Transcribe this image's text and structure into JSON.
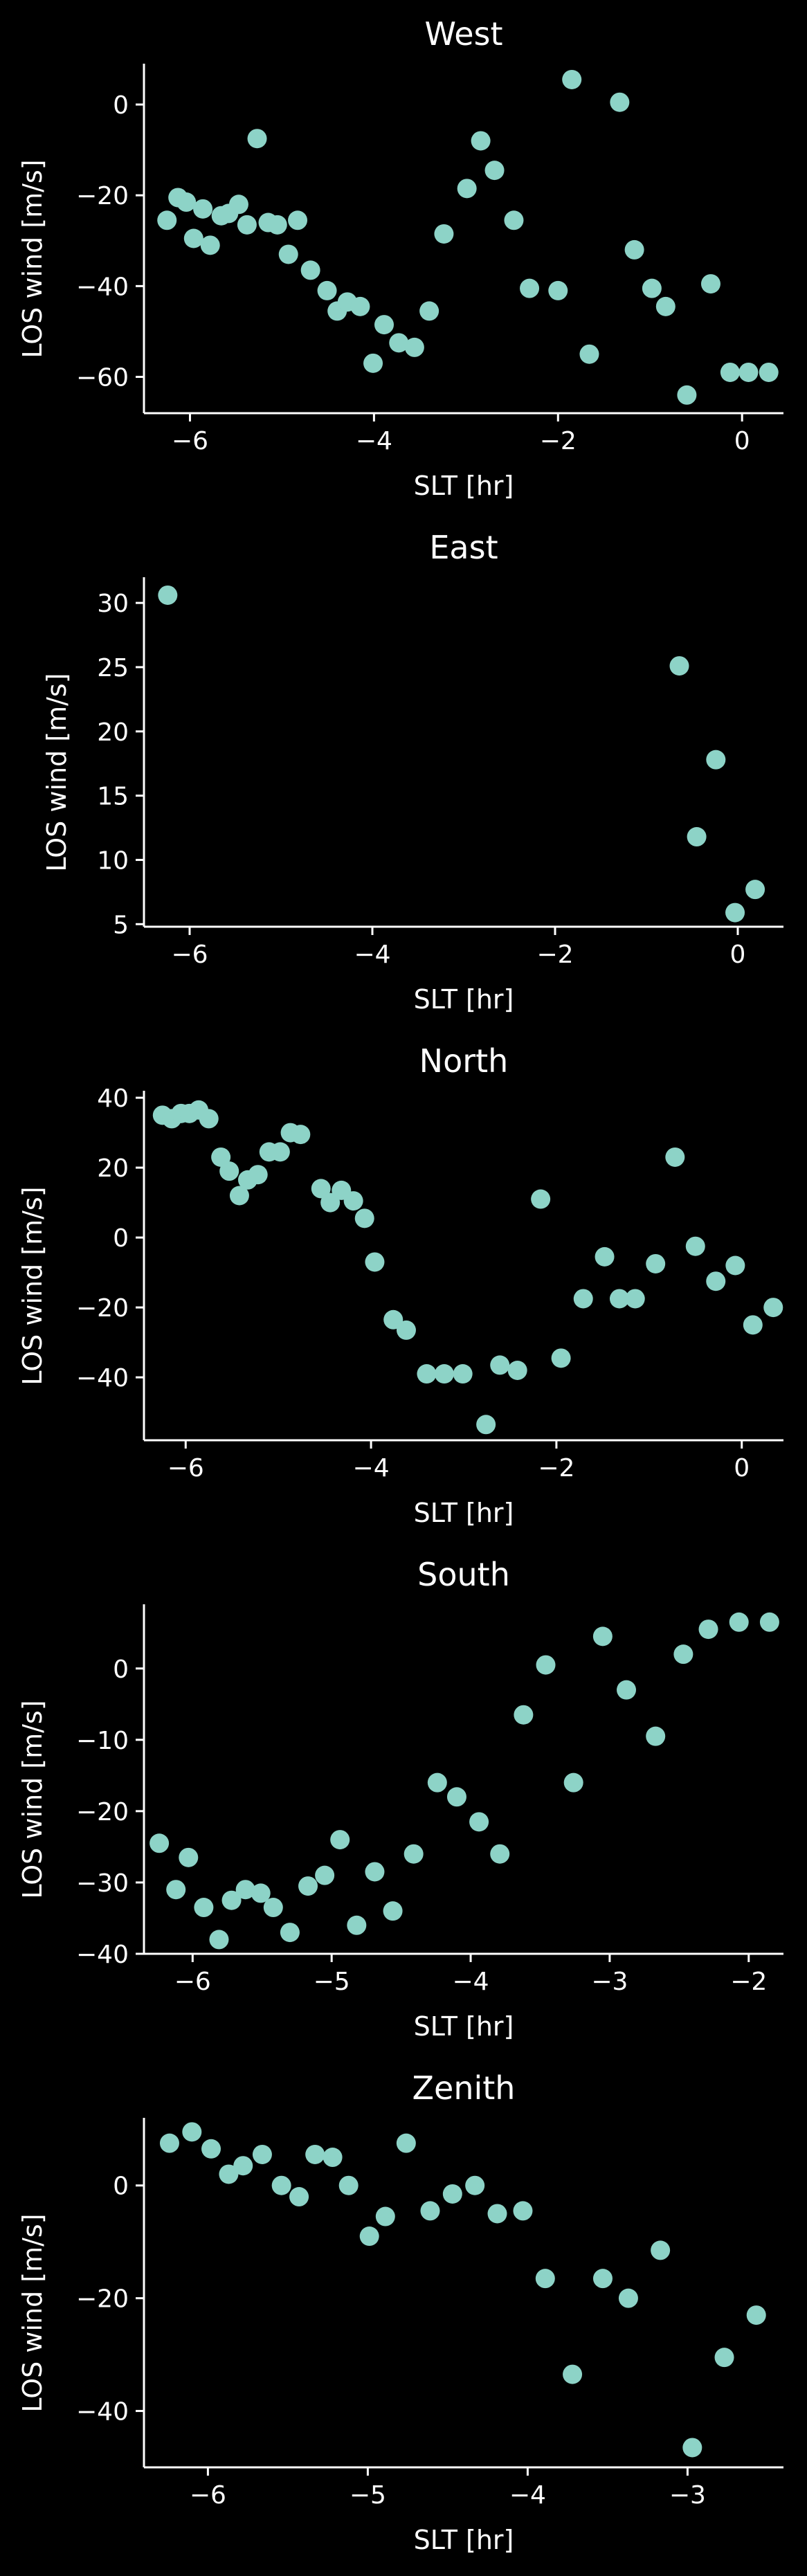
{
  "figure": {
    "background": "#000000",
    "foreground": "#ffffff",
    "marker_color": "#8dd3c7"
  },
  "chart_data": [
    {
      "type": "scatter",
      "title": "West",
      "xlabel": "SLT [hr]",
      "ylabel": "LOS wind [m/s]",
      "xlim": [
        -6.5,
        0.45
      ],
      "ylim": [
        -68,
        9
      ],
      "xticks": [
        -6,
        -4,
        -2,
        0
      ],
      "xtick_labels": [
        "−6",
        "−4",
        "−2",
        "0"
      ],
      "yticks": [
        -60,
        -40,
        -20,
        0
      ],
      "ytick_labels": [
        "−60",
        "−40",
        "−20",
        "0"
      ],
      "grid": false,
      "series": [
        {
          "color": "#8dd3c7",
          "x": [
            -6.25,
            -6.13,
            -6.04,
            -5.96,
            -5.86,
            -5.78,
            -5.66,
            -5.58,
            -5.47,
            -5.38,
            -5.27,
            -5.15,
            -5.05,
            -4.93,
            -4.83,
            -4.69,
            -4.51,
            -4.4,
            -4.29,
            -4.15,
            -4.01,
            -3.89,
            -3.73,
            -3.56,
            -3.4,
            -3.24,
            -2.99,
            -2.84,
            -2.69,
            -2.48,
            -2.31,
            -2.0,
            -1.85,
            -1.66,
            -1.33,
            -1.17,
            -0.98,
            -0.83,
            -0.6,
            -0.34,
            -0.13,
            0.07,
            0.29
          ],
          "y": [
            -25.5,
            -20.5,
            -21.5,
            -29.5,
            -23.0,
            -31.0,
            -24.5,
            -24.0,
            -22.0,
            -26.5,
            -7.5,
            -26.0,
            -26.5,
            -33.0,
            -25.5,
            -36.5,
            -41.0,
            -45.5,
            -43.5,
            -44.5,
            -57.0,
            -48.5,
            -52.5,
            -53.5,
            -45.5,
            -28.5,
            -18.5,
            -8.0,
            -14.5,
            -25.5,
            -40.5,
            -41.0,
            5.5,
            -55.0,
            0.5,
            -32.0,
            -40.5,
            -44.5,
            -64.0,
            -39.5,
            -59.0,
            -59.0,
            -59.0
          ]
        }
      ]
    },
    {
      "type": "scatter",
      "title": "East",
      "xlabel": "SLT [hr]",
      "ylabel": "LOS wind [m/s]",
      "xlim": [
        -6.5,
        0.5
      ],
      "ylim": [
        4.8,
        32
      ],
      "xticks": [
        -6,
        -4,
        -2,
        0
      ],
      "xtick_labels": [
        "−6",
        "−4",
        "−2",
        "0"
      ],
      "yticks": [
        5,
        10,
        15,
        20,
        25,
        30
      ],
      "ytick_labels": [
        "5",
        "10",
        "15",
        "20",
        "25",
        "30"
      ],
      "grid": false,
      "series": [
        {
          "color": "#8dd3c7",
          "x": [
            -6.24,
            -0.64,
            -0.45,
            -0.24,
            -0.03,
            0.19
          ],
          "y": [
            30.6,
            25.1,
            11.8,
            17.8,
            5.9,
            7.7
          ]
        }
      ]
    },
    {
      "type": "scatter",
      "title": "North",
      "xlabel": "SLT [hr]",
      "ylabel": "LOS wind [m/s]",
      "xlim": [
        -6.45,
        0.45
      ],
      "ylim": [
        -58,
        42
      ],
      "xticks": [
        -6,
        -4,
        -2,
        0
      ],
      "xtick_labels": [
        "−6",
        "−4",
        "−2",
        "0"
      ],
      "yticks": [
        -40,
        -20,
        0,
        20,
        40
      ],
      "ytick_labels": [
        "−40",
        "−20",
        "0",
        "20",
        "40"
      ],
      "grid": false,
      "series": [
        {
          "color": "#8dd3c7",
          "x": [
            -6.25,
            -6.15,
            -6.05,
            -5.96,
            -5.86,
            -5.75,
            -5.62,
            -5.53,
            -5.42,
            -5.33,
            -5.22,
            -5.1,
            -4.98,
            -4.87,
            -4.76,
            -4.54,
            -4.44,
            -4.32,
            -4.19,
            -4.07,
            -3.96,
            -3.76,
            -3.62,
            -3.4,
            -3.21,
            -3.01,
            -2.76,
            -2.61,
            -2.42,
            -2.17,
            -1.95,
            -1.71,
            -1.48,
            -1.32,
            -1.15,
            -0.93,
            -0.72,
            -0.5,
            -0.28,
            -0.07,
            0.12,
            0.34
          ],
          "y": [
            35,
            34,
            35.5,
            35.5,
            36.5,
            34,
            23,
            19,
            12,
            16.5,
            18,
            24.5,
            24.5,
            30,
            29.5,
            14,
            10,
            13.5,
            10.5,
            5.5,
            -7,
            -23.5,
            -26.5,
            -39,
            -39,
            -39,
            -53.5,
            -36.5,
            -38,
            11,
            -34.5,
            -17.5,
            -5.5,
            -17.5,
            -17.5,
            -7.5,
            23,
            -2.5,
            -12.5,
            -8,
            -25,
            -20
          ]
        }
      ]
    },
    {
      "type": "scatter",
      "title": "South",
      "xlabel": "SLT [hr]",
      "ylabel": "LOS wind [m/s]",
      "xlim": [
        -6.35,
        -1.75
      ],
      "ylim": [
        -40,
        9
      ],
      "xticks": [
        -6,
        -5,
        -4,
        -3,
        -2
      ],
      "xtick_labels": [
        "−6",
        "−5",
        "−4",
        "−3",
        "−2"
      ],
      "yticks": [
        -40,
        -30,
        -20,
        -10,
        0
      ],
      "ytick_labels": [
        "−40",
        "−30",
        "−20",
        "−10",
        "0"
      ],
      "grid": false,
      "series": [
        {
          "color": "#8dd3c7",
          "x": [
            -6.24,
            -6.12,
            -6.03,
            -5.92,
            -5.81,
            -5.72,
            -5.62,
            -5.51,
            -5.42,
            -5.3,
            -5.17,
            -5.05,
            -4.94,
            -4.82,
            -4.69,
            -4.56,
            -4.41,
            -4.24,
            -4.1,
            -3.94,
            -3.79,
            -3.62,
            -3.46,
            -3.26,
            -3.05,
            -2.88,
            -2.67,
            -2.47,
            -2.29,
            -2.07,
            -1.85
          ],
          "y": [
            -24.5,
            -31.0,
            -26.5,
            -33.5,
            -38.0,
            -32.5,
            -31.0,
            -31.5,
            -33.5,
            -37.0,
            -30.5,
            -29.0,
            -24.0,
            -36.0,
            -28.5,
            -34.0,
            -26.0,
            -16.0,
            -18.0,
            -21.5,
            -26.0,
            -6.5,
            0.5,
            -16.0,
            4.5,
            -3.0,
            -9.5,
            2.0,
            5.5,
            6.5,
            6.5
          ]
        }
      ]
    },
    {
      "type": "scatter",
      "title": "Zenith",
      "xlabel": "SLT [hr]",
      "ylabel": "LOS wind [m/s]",
      "xlim": [
        -6.4,
        -2.4
      ],
      "ylim": [
        -50,
        12
      ],
      "xticks": [
        -6,
        -5,
        -4,
        -3
      ],
      "xtick_labels": [
        "−6",
        "−5",
        "−4",
        "−3"
      ],
      "yticks": [
        -40,
        -20,
        0
      ],
      "ytick_labels": [
        "−40",
        "−20",
        "0"
      ],
      "grid": false,
      "series": [
        {
          "color": "#8dd3c7",
          "x": [
            -6.24,
            -6.1,
            -5.98,
            -5.87,
            -5.78,
            -5.66,
            -5.54,
            -5.43,
            -5.33,
            -5.22,
            -5.12,
            -4.99,
            -4.89,
            -4.76,
            -4.61,
            -4.47,
            -4.33,
            -4.19,
            -4.03,
            -3.89,
            -3.72,
            -3.53,
            -3.37,
            -3.17,
            -2.97,
            -2.77,
            -2.57
          ],
          "y": [
            7.5,
            9.5,
            6.5,
            2,
            3.5,
            5.5,
            0,
            -2,
            5.5,
            5,
            0,
            -9,
            -5.5,
            7.5,
            -4.5,
            -1.5,
            0,
            -5,
            -4.5,
            -16.5,
            -33.5,
            -16.5,
            -20,
            -11.5,
            -46.5,
            -30.5,
            -23
          ]
        }
      ]
    }
  ]
}
